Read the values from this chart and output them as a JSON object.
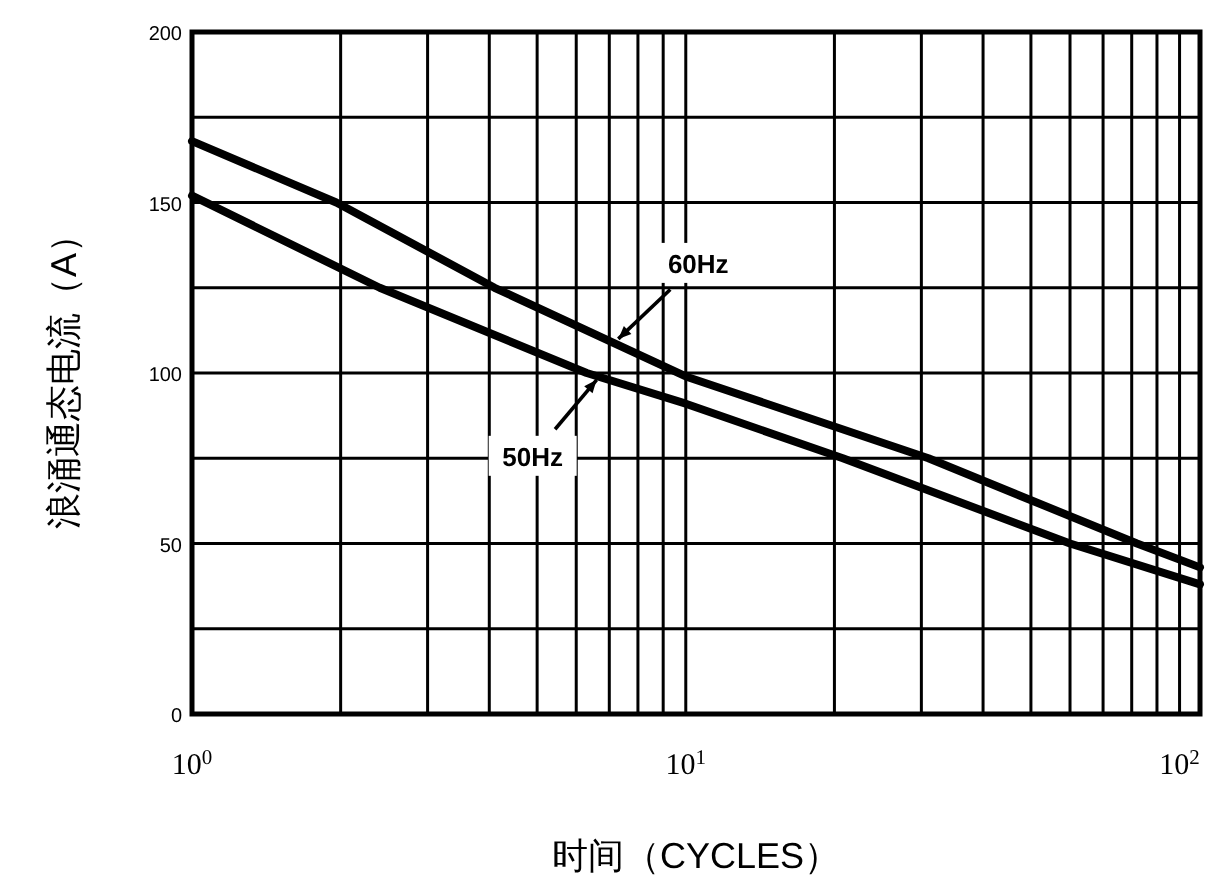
{
  "chart_data": {
    "type": "line",
    "xlabel": "时间（CYCLES）",
    "ylabel": "浪涌通态电流（A）",
    "log": "x",
    "grid": true,
    "xlim": [
      1,
      110
    ],
    "ylim": [
      0,
      200
    ],
    "xticks": [
      {
        "value": 1,
        "label": "10$^{0}$"
      },
      {
        "value": 2,
        "label": null
      },
      {
        "value": 3,
        "label": null
      },
      {
        "value": 4,
        "label": null
      },
      {
        "value": 5,
        "label": null
      },
      {
        "value": 6,
        "label": null
      },
      {
        "value": 7,
        "label": null
      },
      {
        "value": 8,
        "label": null
      },
      {
        "value": 9,
        "label": null
      },
      {
        "value": 10,
        "label": "10$^{1}$"
      },
      {
        "value": 20,
        "label": null
      },
      {
        "value": 30,
        "label": null
      },
      {
        "value": 40,
        "label": null
      },
      {
        "value": 50,
        "label": null
      },
      {
        "value": 60,
        "label": null
      },
      {
        "value": 70,
        "label": null
      },
      {
        "value": 80,
        "label": null
      },
      {
        "value": 90,
        "label": null
      },
      {
        "value": 100,
        "label": "10$^{2}$"
      }
    ],
    "yticks": [
      0,
      {
        "value": 25,
        "label": null
      },
      50,
      {
        "value": 75,
        "label": null
      },
      100,
      {
        "value": 125,
        "label": null
      },
      150,
      {
        "value": 175,
        "label": null
      },
      200
    ],
    "series": [
      {
        "color": "#000000",
        "x": [
          1,
          1.96,
          4.1,
          10,
          31,
          82,
          110
        ],
        "values": [
          168,
          150,
          125,
          99,
          75,
          50,
          43
        ]
      },
      {
        "color": "#000000",
        "x": [
          1,
          2.4,
          6.3,
          10,
          20.8,
          60,
          110
        ],
        "values": [
          152,
          125,
          100,
          91,
          75,
          50,
          38
        ]
      }
    ],
    "annotations": [
      {
        "text": "60Hz",
        "x": 7.3,
        "y": 110
      },
      {
        "text": "50Hz",
        "x": 6.6,
        "y": 98
      }
    ]
  }
}
